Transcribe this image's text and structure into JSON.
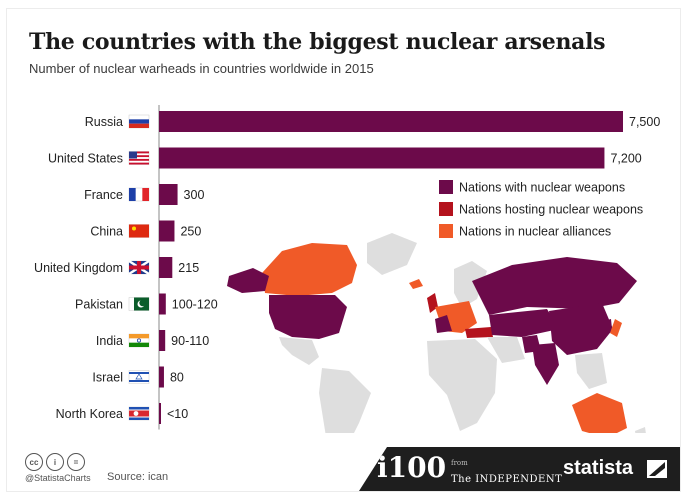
{
  "header": {
    "title": "The countries with the biggest nuclear arsenals",
    "subtitle": "Number of nuclear warheads in countries worldwide in 2015"
  },
  "chart_data": {
    "type": "bar",
    "orientation": "horizontal",
    "title": "The countries with the biggest nuclear arsenals",
    "subtitle": "Number of nuclear warheads in countries worldwide in 2015",
    "categories": [
      "Russia",
      "United States",
      "France",
      "China",
      "United Kingdom",
      "Pakistan",
      "India",
      "Israel",
      "North Korea"
    ],
    "values": [
      7500,
      7200,
      300,
      250,
      215,
      110,
      100,
      80,
      10
    ],
    "value_labels": [
      "7,500",
      "7,200",
      "300",
      "250",
      "215",
      "100-120",
      "90-110",
      "80",
      "<10"
    ],
    "xlim": [
      0,
      7500
    ],
    "grid": false,
    "bar_color": "#6c0a4a",
    "legend": {
      "placement": "right",
      "items": [
        {
          "label": "Nations with nuclear weapons",
          "color": "#6c0a4a"
        },
        {
          "label": "Nations hosting nuclear weapons",
          "color": "#b4121d"
        },
        {
          "label": "Nations in nuclear alliances",
          "color": "#f05a28"
        }
      ]
    },
    "map": {
      "base_color": "#dedede",
      "weapons_color": "#6c0a4a",
      "hosting_color": "#b4121d",
      "alliance_color": "#f05a28"
    }
  },
  "footer": {
    "cc_icons": [
      "cc",
      "i",
      "="
    ],
    "handle": "@StatistaCharts",
    "source": "Source: ican",
    "partner_logo": "i100",
    "partner_from": "from",
    "partner_name": "The INDEPENDENT",
    "brand": "statista"
  }
}
